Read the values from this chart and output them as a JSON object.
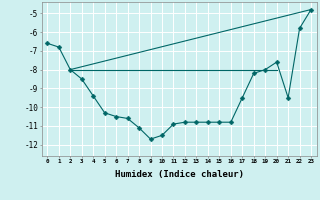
{
  "xlabel": "Humidex (Indice chaleur)",
  "bg_color": "#cff0f0",
  "grid_color": "#ffffff",
  "line_color": "#006666",
  "xlim": [
    -0.5,
    23.5
  ],
  "ylim": [
    -12.6,
    -4.4
  ],
  "yticks": [
    -12,
    -11,
    -10,
    -9,
    -8,
    -7,
    -6,
    -5
  ],
  "xticks": [
    0,
    1,
    2,
    3,
    4,
    5,
    6,
    7,
    8,
    9,
    10,
    11,
    12,
    13,
    14,
    15,
    16,
    17,
    18,
    19,
    20,
    21,
    22,
    23
  ],
  "line1_x": [
    0,
    1,
    2,
    3,
    4,
    5,
    6,
    7,
    8,
    9,
    10,
    11,
    12,
    13,
    14,
    15,
    16,
    17,
    18,
    19,
    20,
    21,
    22,
    23
  ],
  "line1_y": [
    -6.6,
    -6.8,
    -8.0,
    -8.5,
    -9.4,
    -10.3,
    -10.5,
    -10.6,
    -11.1,
    -11.7,
    -11.5,
    -10.9,
    -10.8,
    -10.8,
    -10.8,
    -10.8,
    -10.8,
    -9.5,
    -8.2,
    -8.0,
    -7.6,
    -9.5,
    -5.8,
    -4.8
  ],
  "line2_x": [
    2,
    20
  ],
  "line2_y": [
    -8.0,
    -8.0
  ],
  "line3_x": [
    2,
    23
  ],
  "line3_y": [
    -8.0,
    -4.8
  ]
}
